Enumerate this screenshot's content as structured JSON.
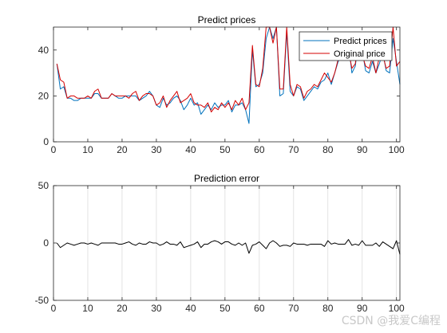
{
  "chart_data": [
    {
      "type": "line",
      "title": "Predict prices",
      "xlabel": "",
      "ylabel": "",
      "xlim": [
        0,
        101
      ],
      "ylim": [
        0,
        50
      ],
      "xticks": [
        0,
        10,
        20,
        30,
        40,
        50,
        60,
        70,
        80,
        90,
        100
      ],
      "yticks": [
        0,
        20,
        40
      ],
      "grid": false,
      "legend_position": "top-right",
      "series": [
        {
          "name": "Predict prices",
          "color": "#0072BD",
          "values": [
            34,
            23,
            24,
            19,
            19,
            18,
            18,
            19,
            19,
            19,
            19,
            21,
            21,
            19,
            19,
            19,
            21,
            20,
            19,
            19,
            20,
            20,
            20,
            20,
            18,
            19,
            20,
            22,
            20,
            16,
            15,
            19,
            16,
            17,
            19,
            20,
            18,
            14,
            16,
            19,
            16,
            17,
            12,
            14,
            16,
            14,
            17,
            15,
            16,
            16,
            18,
            13,
            16,
            16,
            17,
            14,
            8,
            40,
            24,
            25,
            30,
            45,
            50,
            45,
            50,
            20,
            21,
            48,
            22,
            20,
            24,
            23,
            18,
            20,
            22,
            24,
            23,
            26,
            27,
            30,
            25,
            30,
            35,
            37,
            39,
            43,
            30,
            33,
            45,
            40,
            31,
            30,
            35,
            30,
            34,
            39,
            31,
            30,
            45,
            35,
            25
          ]
        },
        {
          "name": "Original price",
          "color": "#D40000",
          "values": [
            34,
            27,
            26,
            19,
            20,
            20,
            19,
            19,
            19,
            20,
            19,
            22,
            23,
            19,
            19,
            19,
            21,
            20,
            20,
            20,
            20,
            19,
            21,
            22,
            18,
            20,
            21,
            21,
            20,
            16,
            17,
            20,
            15,
            18,
            20,
            22,
            17,
            18,
            19,
            21,
            17,
            16,
            16,
            15,
            17,
            13,
            15,
            14,
            17,
            15,
            17,
            14,
            18,
            16,
            19,
            14,
            17,
            42,
            25,
            24,
            32,
            50,
            50,
            43,
            50,
            23,
            23,
            50,
            25,
            20,
            25,
            24,
            19,
            22,
            23,
            25,
            24,
            27,
            30,
            28,
            26,
            30,
            36,
            38,
            40,
            40,
            32,
            34,
            47,
            38,
            33,
            32,
            37,
            30,
            37,
            38,
            32,
            33,
            50,
            33,
            35
          ]
        }
      ]
    },
    {
      "type": "line",
      "title": "Prediction error",
      "xlabel": "",
      "ylabel": "",
      "xlim": [
        0,
        101
      ],
      "ylim": [
        -50,
        50
      ],
      "xticks": [
        0,
        10,
        20,
        30,
        40,
        50,
        60,
        70,
        80,
        90,
        100
      ],
      "yticks": [
        -50,
        0,
        50
      ],
      "grid": true,
      "series": [
        {
          "name": "",
          "color": "#000000",
          "values": [
            0,
            -4,
            -2,
            0,
            -1,
            -2,
            -1,
            0,
            0,
            -1,
            0,
            -1,
            -2,
            0,
            0,
            0,
            0,
            0,
            -1,
            -1,
            0,
            1,
            -1,
            -2,
            0,
            -1,
            -1,
            1,
            0,
            0,
            -2,
            -1,
            1,
            -1,
            -1,
            -2,
            1,
            -4,
            -3,
            -2,
            -1,
            1,
            -4,
            -1,
            -1,
            1,
            2,
            1,
            -1,
            1,
            1,
            -1,
            -2,
            0,
            -2,
            0,
            -9,
            -2,
            -1,
            1,
            -2,
            -5,
            0,
            2,
            0,
            -3,
            -2,
            -2,
            -3,
            0,
            -1,
            -1,
            -1,
            -2,
            -1,
            -1,
            -1,
            -1,
            -3,
            2,
            -1,
            0,
            -1,
            -1,
            -1,
            3,
            -2,
            -1,
            -2,
            2,
            -2,
            -2,
            -2,
            0,
            -3,
            1,
            -1,
            -3,
            -5,
            2,
            -10
          ]
        }
      ]
    }
  ],
  "watermark": "CSDN @我爱C编程"
}
